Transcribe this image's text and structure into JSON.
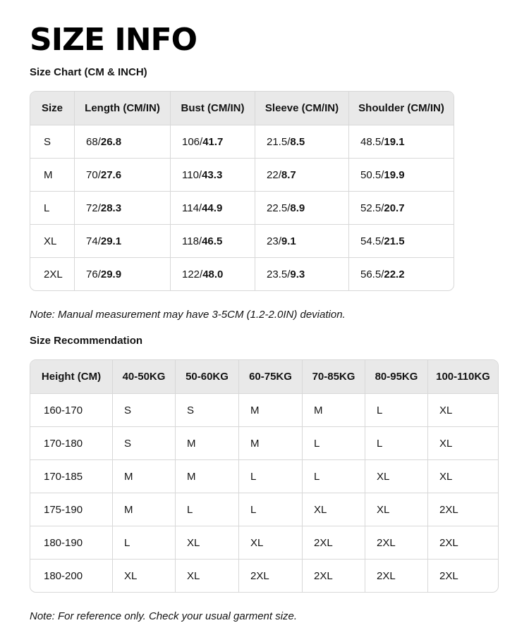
{
  "page": {
    "title": "SIZE INFO"
  },
  "colors": {
    "header_bg": "#e9e9e9",
    "border": "#d8d8d8",
    "text": "#141414",
    "background": "#ffffff"
  },
  "size_chart": {
    "heading": "Size Chart (CM & INCH)",
    "headers": [
      "Size",
      "Length (CM/IN)",
      "Bust (CM/IN)",
      "Sleeve (CM/IN)",
      "Shoulder (CM/IN)"
    ],
    "rows": [
      {
        "size": "S",
        "length": [
          "68",
          "26.8"
        ],
        "bust": [
          "106",
          "41.7"
        ],
        "sleeve": [
          "21.5",
          "8.5"
        ],
        "shoulder": [
          "48.5",
          "19.1"
        ]
      },
      {
        "size": "M",
        "length": [
          "70",
          "27.6"
        ],
        "bust": [
          "110",
          "43.3"
        ],
        "sleeve": [
          "22",
          "8.7"
        ],
        "shoulder": [
          "50.5",
          "19.9"
        ]
      },
      {
        "size": "L",
        "length": [
          "72",
          "28.3"
        ],
        "bust": [
          "114",
          "44.9"
        ],
        "sleeve": [
          "22.5",
          "8.9"
        ],
        "shoulder": [
          "52.5",
          "20.7"
        ]
      },
      {
        "size": "XL",
        "length": [
          "74",
          "29.1"
        ],
        "bust": [
          "118",
          "46.5"
        ],
        "sleeve": [
          "23",
          "9.1"
        ],
        "shoulder": [
          "54.5",
          "21.5"
        ]
      },
      {
        "size": "2XL",
        "length": [
          "76",
          "29.9"
        ],
        "bust": [
          "122",
          "48.0"
        ],
        "sleeve": [
          "23.5",
          "9.3"
        ],
        "shoulder": [
          "56.5",
          "22.2"
        ]
      }
    ],
    "note": "Note: Manual measurement may have 3-5CM (1.2-2.0IN) deviation."
  },
  "size_recommendation": {
    "heading": "Size Recommendation",
    "headers": [
      "Height (CM)",
      "40-50KG",
      "50-60KG",
      "60-75KG",
      "70-85KG",
      "80-95KG",
      "100-110KG"
    ],
    "rows": [
      {
        "height": "160-170",
        "sizes": [
          "S",
          "S",
          "M",
          "M",
          "L",
          "XL"
        ]
      },
      {
        "height": "170-180",
        "sizes": [
          "S",
          "M",
          "M",
          "L",
          "L",
          "XL"
        ]
      },
      {
        "height": "170-185",
        "sizes": [
          "M",
          "M",
          "L",
          "L",
          "XL",
          "XL"
        ]
      },
      {
        "height": "175-190",
        "sizes": [
          "M",
          "L",
          "L",
          "XL",
          "XL",
          "2XL"
        ]
      },
      {
        "height": "180-190",
        "sizes": [
          "L",
          "XL",
          "XL",
          "2XL",
          "2XL",
          "2XL"
        ]
      },
      {
        "height": "180-200",
        "sizes": [
          "XL",
          "XL",
          "2XL",
          "2XL",
          "2XL",
          "2XL"
        ]
      }
    ],
    "note": "Note: For reference only. Check your usual garment size."
  }
}
